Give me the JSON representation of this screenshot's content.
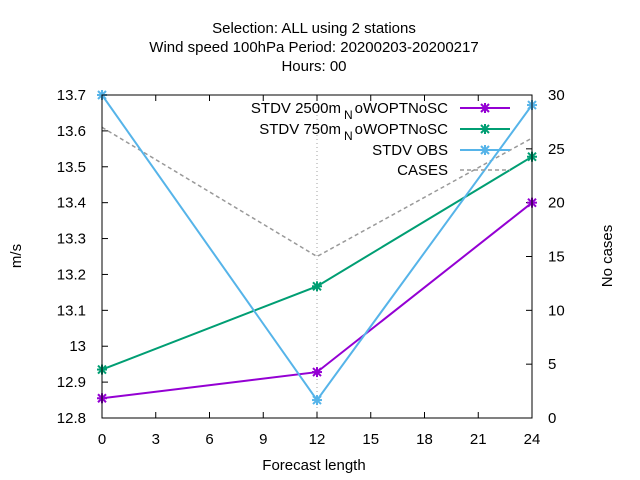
{
  "chart_data": {
    "type": "line",
    "title_lines": [
      "Selection: ALL using     2 stations",
      "Wind speed 100hPa   Period: 20200203-20200217",
      "Hours:  00"
    ],
    "xlabel": "Forecast length",
    "ylabel": "m/s",
    "y2label": "No cases",
    "x": [
      0,
      12,
      24
    ],
    "xlim": [
      0,
      24
    ],
    "xticks": [
      0,
      3,
      6,
      9,
      12,
      15,
      18,
      21,
      24
    ],
    "ylim": [
      12.8,
      13.7
    ],
    "yticks": [
      "12.8",
      "12.9",
      "13",
      "13.1",
      "13.2",
      "13.3",
      "13.4",
      "13.5",
      "13.6",
      "13.7"
    ],
    "y2lim": [
      0,
      30
    ],
    "y2ticks": [
      0,
      5,
      10,
      15,
      20,
      25,
      30
    ],
    "grid": "vertical dotted at 12",
    "legend_position": "top-right",
    "series": [
      {
        "name": "STDV 2500m_NoWOPTNoSC",
        "legend_main": "STDV 2500m",
        "legend_sub": "N",
        "legend_rest": "oWOPTNoSC",
        "axis": "y",
        "color": "#9400d3",
        "values": [
          12.855,
          12.928,
          13.4
        ]
      },
      {
        "name": "STDV 750m_NoWOPTNoSC",
        "legend_main": "STDV 750m",
        "legend_sub": "N",
        "legend_rest": "oWOPTNoSC",
        "axis": "y",
        "color": "#009e73",
        "values": [
          12.935,
          13.167,
          13.528
        ]
      },
      {
        "name": "STDV OBS",
        "legend_main": "STDV OBS",
        "axis": "y",
        "color": "#56b4e9",
        "values": [
          13.7,
          12.85,
          13.672
        ]
      },
      {
        "name": "CASES",
        "legend_main": "CASES",
        "axis": "y2",
        "color": "#999999",
        "dashed": true,
        "values": [
          27,
          15,
          26
        ]
      }
    ]
  }
}
